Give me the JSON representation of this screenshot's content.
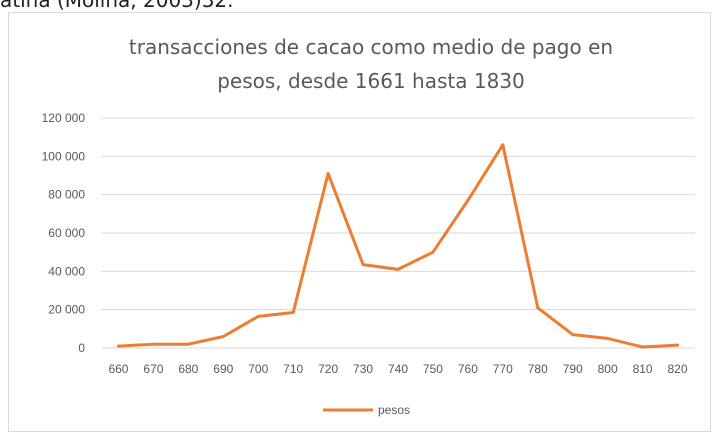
{
  "caption": "atina (Molina, 2003)32.",
  "chart_data": {
    "type": "line",
    "title_lines": [
      "transacciones de cacao como medio de pago en",
      "pesos, desde 1661 hasta 1830"
    ],
    "x": [
      "660",
      "670",
      "680",
      "690",
      "700",
      "710",
      "720",
      "730",
      "740",
      "750",
      "760",
      "770",
      "780",
      "790",
      "800",
      "810",
      "820"
    ],
    "series": [
      {
        "name": "pesos",
        "color": "#ed7d31",
        "values": [
          1000,
          2000,
          2000,
          6000,
          16500,
          18500,
          91000,
          43500,
          41000,
          50000,
          77000,
          106000,
          21000,
          7000,
          5000,
          500,
          1500
        ]
      }
    ],
    "ylim": [
      0,
      120000
    ],
    "yticks": [
      "0",
      "20 000",
      "40 000",
      "60 000",
      "80 000",
      "100 000",
      "120 000"
    ],
    "ytick_values": [
      0,
      20000,
      40000,
      60000,
      80000,
      100000,
      120000
    ],
    "grid": true,
    "legend_position": "bottom"
  }
}
